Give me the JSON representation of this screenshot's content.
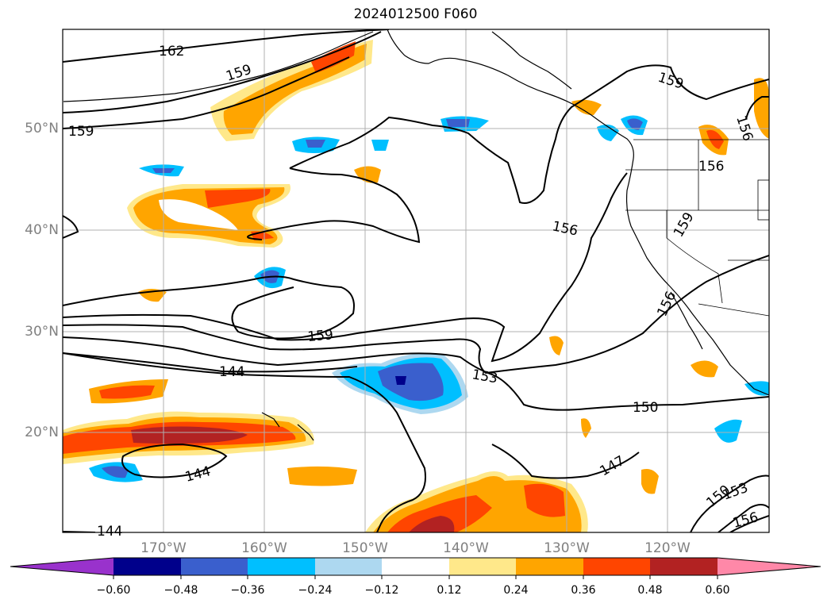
{
  "title": "2024012500 F060",
  "latitude_labels": [
    "50°N",
    "40°N",
    "30°N",
    "20°N"
  ],
  "longitude_labels": [
    "170°W",
    "160°W",
    "150°W",
    "140°W",
    "130°W",
    "120°W"
  ],
  "colorbar": {
    "ticks": [
      "−0.60",
      "−0.48",
      "−0.36",
      "−0.24",
      "−0.12",
      "0.12",
      "0.24",
      "0.36",
      "0.48",
      "0.60"
    ],
    "colors": [
      "#9932cc",
      "#00008b",
      "#3a5fcd",
      "#00bfff",
      "#add8f0",
      "#ffffff",
      "#ffe88a",
      "#ffa500",
      "#ff4500",
      "#b22222",
      "#ff88a8"
    ]
  },
  "contour_labels": [
    "162",
    "159",
    "159",
    "159",
    "159",
    "156",
    "156",
    "156",
    "159",
    "156",
    "153",
    "150",
    "147",
    "150",
    "153",
    "156",
    "144",
    "144",
    "144"
  ],
  "map": {
    "region": "North-East Pacific and western North America",
    "lat_range": [
      10,
      60
    ],
    "lon_range": [
      -180,
      -110
    ],
    "grid": true
  }
}
